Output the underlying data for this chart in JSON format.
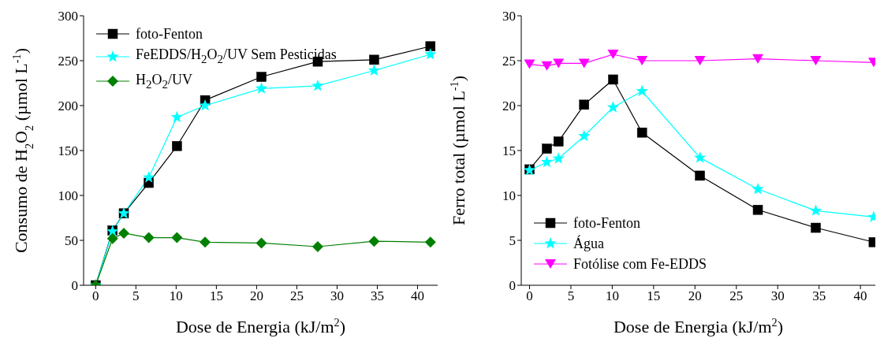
{
  "chart_data": [
    {
      "type": "line",
      "xlabel": "Dose de Energia (kJ/m$^{2}$)",
      "ylabel": "Consumo de H$_{2}$O$_{2}$ (µmol L$^{-1}$)",
      "x": [
        0,
        2.1,
        3.5,
        6.6,
        10.1,
        13.6,
        20.6,
        27.6,
        34.6,
        41.6
      ],
      "series": [
        {
          "name": "foto-Fenton",
          "color": "#000000",
          "marker": "square",
          "values": [
            0,
            61,
            80,
            114,
            155,
            206,
            232,
            249,
            251,
            266
          ]
        },
        {
          "name": "FeEDDS/H$_{2}$O$_{2}$/UV Sem Pesticidas",
          "color": "#00ffff",
          "marker": "star",
          "values": [
            0,
            60,
            80,
            120,
            187,
            200,
            219,
            222,
            239,
            257
          ]
        },
        {
          "name": "H$_{2}$O$_{2}$/UV",
          "color": "#008000",
          "marker": "diamond",
          "values": [
            0,
            52,
            58,
            53,
            53,
            48,
            47,
            43,
            49,
            48
          ]
        }
      ],
      "xlim": [
        -1.5,
        42.5
      ],
      "xticks": [
        0,
        5,
        10,
        15,
        20,
        25,
        30,
        35,
        40
      ],
      "ylim": [
        0,
        300
      ],
      "yticks": [
        0,
        50,
        100,
        150,
        200,
        250,
        300
      ],
      "grid": false,
      "legend": "top left"
    },
    {
      "type": "line",
      "xlabel": "Dose de Energia (kJ/m$^{2}$)",
      "ylabel": "Ferro total (µmol L$^{-1}$)",
      "x": [
        0,
        2.1,
        3.5,
        6.6,
        10.1,
        13.6,
        20.6,
        27.6,
        34.6,
        41.6
      ],
      "series": [
        {
          "name": "foto-Fenton",
          "color": "#000000",
          "marker": "square",
          "values": [
            12.9,
            15.2,
            16.0,
            20.1,
            22.9,
            17.0,
            12.2,
            8.4,
            6.4,
            4.8
          ]
        },
        {
          "name": "Água",
          "color": "#00ffff",
          "marker": "star",
          "values": [
            12.8,
            13.7,
            14.1,
            16.6,
            19.8,
            21.6,
            14.2,
            10.7,
            8.3,
            7.6
          ]
        },
        {
          "name": "Fotólise com Fe-EDDS",
          "color": "#ff00ff",
          "marker": "triangle-down",
          "values": [
            24.6,
            24.4,
            24.7,
            24.7,
            25.7,
            25.0,
            25.0,
            25.2,
            25.0,
            24.8
          ]
        }
      ],
      "xlim": [
        -1,
        41.8
      ],
      "xticks": [
        0,
        5,
        10,
        15,
        20,
        25,
        30,
        35,
        40
      ],
      "ylim": [
        0,
        30
      ],
      "yticks": [
        0,
        5,
        10,
        15,
        20,
        25,
        30
      ],
      "grid": false,
      "legend": "bottom left"
    }
  ]
}
